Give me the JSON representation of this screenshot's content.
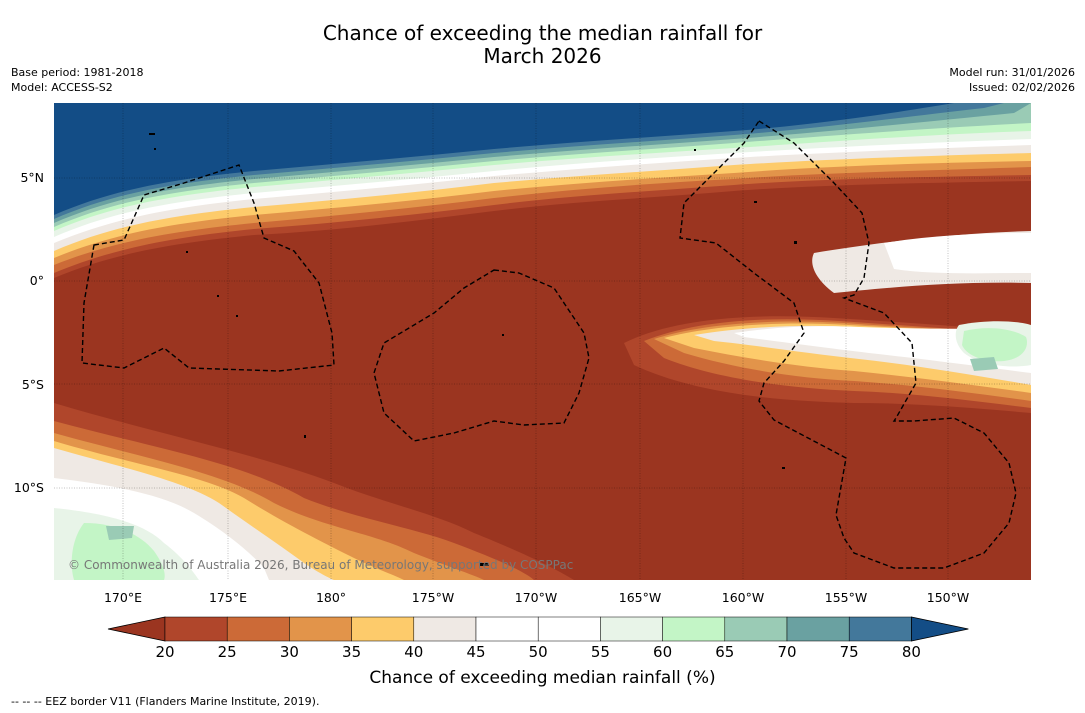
{
  "title_line1": "Chance of exceeding the median rainfall for",
  "title_line2": "March 2026",
  "base_period": "Base period: 1981-2018",
  "model": "Model: ACCESS-S2",
  "model_run": "Model run: 31/01/2026",
  "issued": "Issued: 02/02/2026",
  "copyright": "© Commonwealth of Australia 2026, Bureau of Meteorology, supported by COSPPac",
  "lat_labels": [
    "5°N",
    "0°",
    "5°S",
    "10°S"
  ],
  "lon_labels": [
    "170°E",
    "175°E",
    "180°",
    "175°W",
    "170°W",
    "165°W",
    "160°W",
    "155°W",
    "150°W"
  ],
  "colorbar": {
    "label": "Chance of exceeding median rainfall (%)",
    "ticks": [
      "20",
      "25",
      "30",
      "35",
      "40",
      "45",
      "50",
      "55",
      "60",
      "65",
      "70",
      "75",
      "80"
    ],
    "colors": [
      "#9b3520",
      "#b0462b",
      "#cc6a37",
      "#e2944a",
      "#fdcb6b",
      "#efe9e4",
      "#ffffff",
      "#ffffff",
      "#e8f4e8",
      "#c3f5c6",
      "#9acbb5",
      "#6aa1a1",
      "#43789b",
      "#134d86"
    ]
  },
  "footnote": "--  --  -- EEZ border V11 (Flanders Marine Institute, 2019)."
}
